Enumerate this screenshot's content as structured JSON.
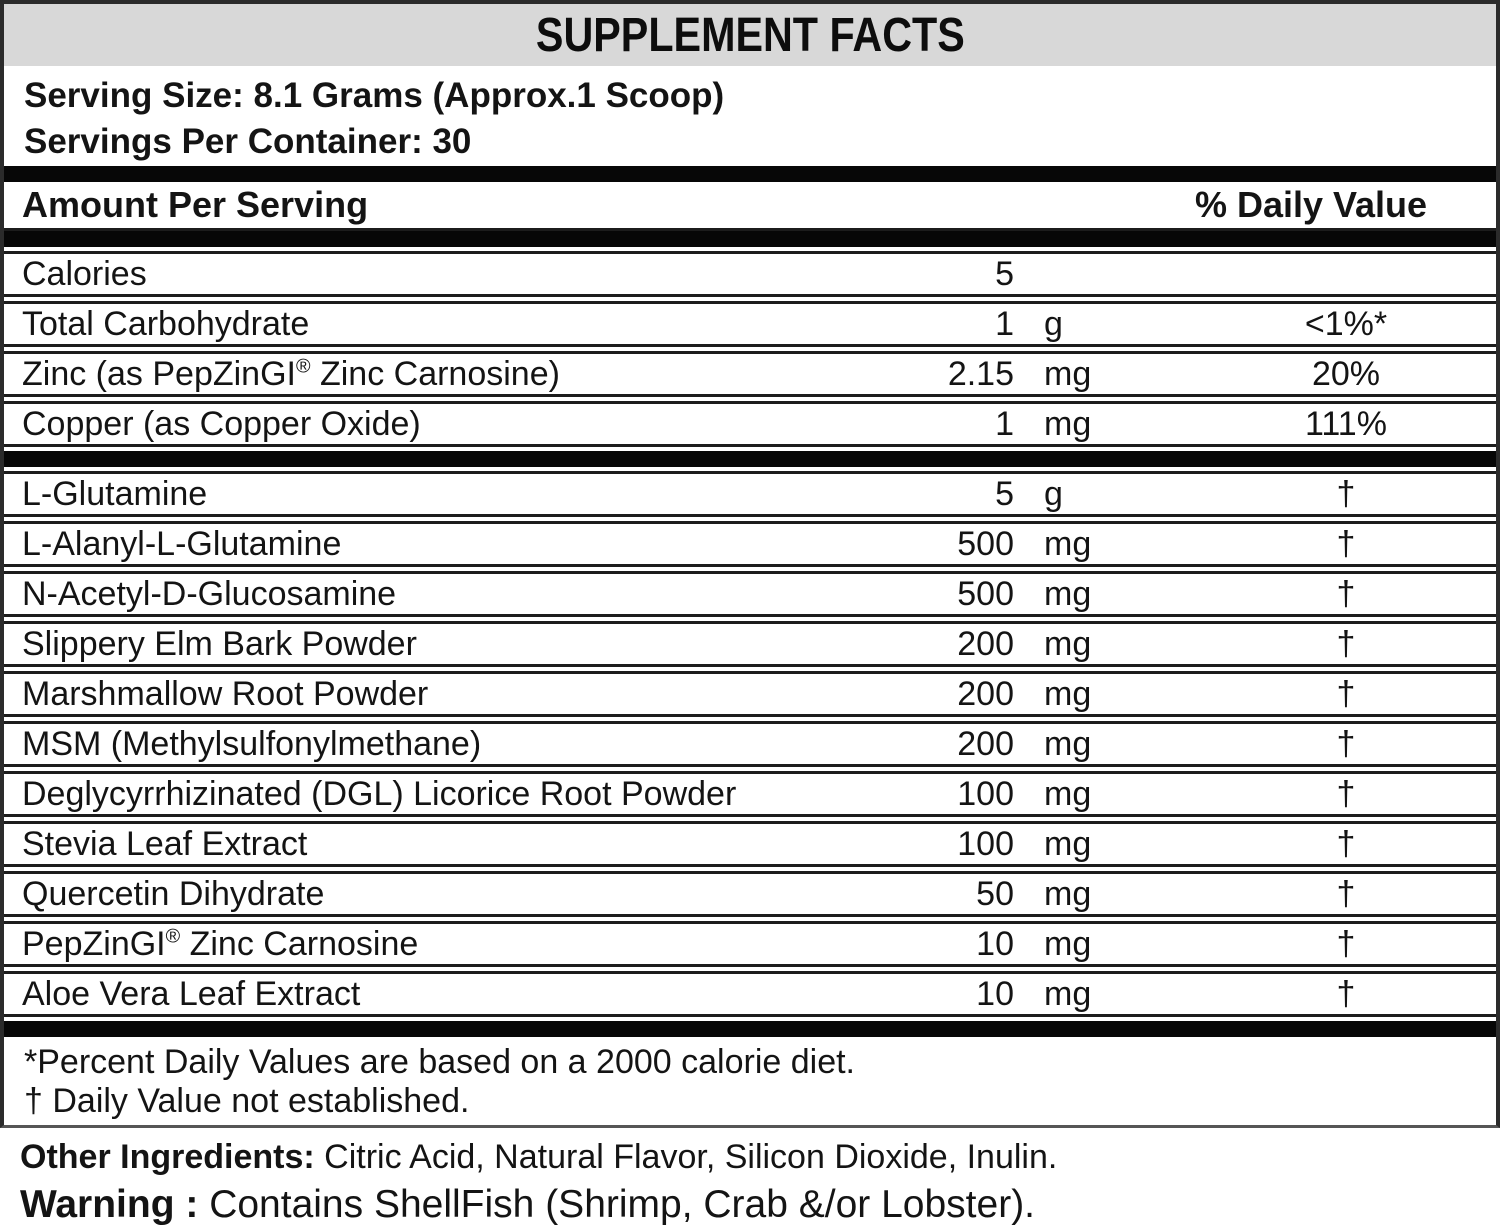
{
  "title": "SUPPLEMENT FACTS",
  "serving": {
    "size_line": "Serving Size: 8.1 Grams (Approx.1 Scoop)",
    "servings_line": "Servings Per Container: 30"
  },
  "table": {
    "amount_header": "Amount Per Serving",
    "dv_header": "% Daily Value",
    "section1": [
      {
        "name": "Calories",
        "amount": "5",
        "unit": "",
        "dv": ""
      },
      {
        "name": "Total Carbohydrate",
        "amount": "1",
        "unit": "g",
        "dv": "<1%*"
      },
      {
        "name": "Zinc (as PepZinGI® Zinc Carnosine)",
        "amount": "2.15",
        "unit": "mg",
        "dv": "20%"
      },
      {
        "name": "Copper (as Copper Oxide)",
        "amount": "1",
        "unit": "mg",
        "dv": "111%"
      }
    ],
    "section2": [
      {
        "name": "L-Glutamine",
        "amount": "5",
        "unit": "g",
        "dv": "†"
      },
      {
        "name": "L-Alanyl-L-Glutamine",
        "amount": "500",
        "unit": "mg",
        "dv": "†"
      },
      {
        "name": "N-Acetyl-D-Glucosamine",
        "amount": "500",
        "unit": "mg",
        "dv": "†"
      },
      {
        "name": "Slippery Elm Bark Powder",
        "amount": "200",
        "unit": "mg",
        "dv": "†"
      },
      {
        "name": "Marshmallow Root Powder",
        "amount": "200",
        "unit": "mg",
        "dv": "†"
      },
      {
        "name": "MSM (Methylsulfonylmethane)",
        "amount": "200",
        "unit": "mg",
        "dv": "†"
      },
      {
        "name": "Deglycyrrhizinated (DGL) Licorice Root Powder",
        "amount": "100",
        "unit": "mg",
        "dv": "†"
      },
      {
        "name": "Stevia Leaf Extract",
        "amount": "100",
        "unit": "mg",
        "dv": "†"
      },
      {
        "name": "Quercetin Dihydrate",
        "amount": "50",
        "unit": "mg",
        "dv": "†"
      },
      {
        "name": "PepZinGI® Zinc Carnosine",
        "amount": "10",
        "unit": "mg",
        "dv": "†"
      },
      {
        "name": "Aloe Vera Leaf Extract",
        "amount": "10",
        "unit": "mg",
        "dv": "†"
      }
    ]
  },
  "footnotes": {
    "percent": "*Percent Daily Values are based on a 2000 calorie diet.",
    "dagger": "† Daily Value not established."
  },
  "other_ingredients": {
    "label": "Other Ingredients:",
    "text": " Citric Acid, Natural Flavor, Silicon Dioxide, Inulin."
  },
  "warning": {
    "label": "Warning :",
    "text": " Contains ShellFish (Shrimp, Crab &/or Lobster)."
  },
  "colors": {
    "title_band": "#d8d8d8",
    "bar": "#070707",
    "border": "#2b2b2b",
    "text": "#141414"
  }
}
